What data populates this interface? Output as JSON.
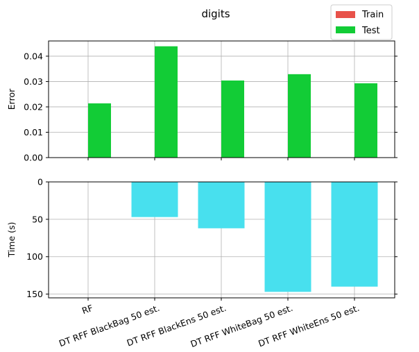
{
  "chart_data": [
    {
      "type": "bar",
      "title": "digits",
      "categories": [
        "RF",
        "DT RFF BlackBag 50 est.",
        "DT RFF BlackEns 50 est.",
        "DT RFF WhiteBag 50 est.",
        "DT RFF WhiteEns 50 est."
      ],
      "series": [
        {
          "name": "Train",
          "color": "#e8524a",
          "values": [
            0,
            0,
            0,
            0,
            0
          ]
        },
        {
          "name": "Test",
          "color": "#12cc36",
          "values": [
            0.0214,
            0.0439,
            0.0304,
            0.0329,
            0.0293
          ]
        }
      ],
      "xlabel": "",
      "ylabel": "Error",
      "ylim": [
        0,
        0.046
      ],
      "yticks": [
        "0.00",
        "0.01",
        "0.02",
        "0.03",
        "0.04"
      ],
      "grid": true,
      "legend": "top-right"
    },
    {
      "type": "bar",
      "categories": [
        "RF",
        "DT RFF BlackBag 50 est.",
        "DT RFF BlackEns 50 est.",
        "DT RFF WhiteBag 50 est.",
        "DT RFF WhiteEns 50 est."
      ],
      "series": [
        {
          "color": "#48e0ee",
          "values": [
            0,
            47,
            62,
            147,
            140
          ]
        }
      ],
      "xlabel": "",
      "ylabel": "Time (s)",
      "ylim": [
        0,
        155
      ],
      "y_inverted": true,
      "yticks": [
        "0",
        "50",
        "100",
        "150"
      ],
      "grid": true
    }
  ]
}
